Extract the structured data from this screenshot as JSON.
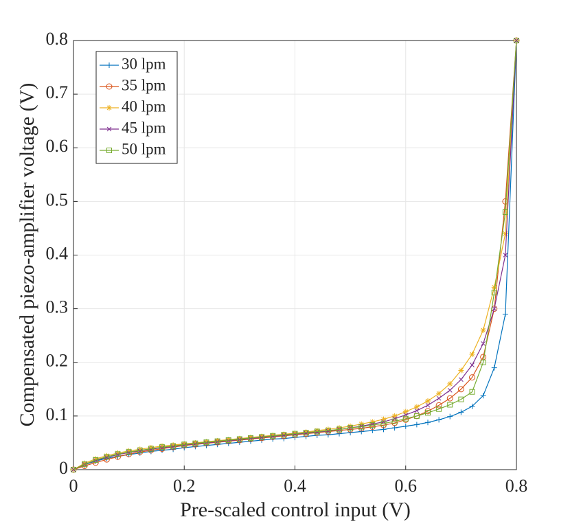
{
  "chart_data": {
    "type": "line",
    "xlabel": "Pre-scaled control input (V)",
    "ylabel": "Compensated piezo-amplifier voltage (V)",
    "x": [
      0,
      0.02,
      0.04,
      0.06,
      0.08,
      0.1,
      0.12,
      0.14,
      0.16,
      0.18,
      0.2,
      0.22,
      0.24,
      0.26,
      0.28,
      0.3,
      0.32,
      0.34,
      0.36,
      0.38,
      0.4,
      0.42,
      0.44,
      0.46,
      0.48,
      0.5,
      0.52,
      0.54,
      0.56,
      0.58,
      0.6,
      0.62,
      0.64,
      0.66,
      0.68,
      0.7,
      0.72,
      0.74,
      0.76,
      0.78,
      0.8
    ],
    "series": [
      {
        "name": "30 lpm",
        "color": "#0072bd",
        "marker": "+",
        "values": [
          0,
          0.009,
          0.016,
          0.021,
          0.025,
          0.028,
          0.031,
          0.034,
          0.036,
          0.038,
          0.041,
          0.043,
          0.045,
          0.047,
          0.049,
          0.051,
          0.053,
          0.055,
          0.057,
          0.058,
          0.06,
          0.062,
          0.064,
          0.065,
          0.067,
          0.069,
          0.071,
          0.073,
          0.075,
          0.078,
          0.081,
          0.084,
          0.088,
          0.093,
          0.099,
          0.107,
          0.118,
          0.138,
          0.19,
          0.29,
          0.8
        ]
      },
      {
        "name": "35 lpm",
        "color": "#d95319",
        "marker": "o",
        "values": [
          0,
          0.007,
          0.013,
          0.019,
          0.024,
          0.029,
          0.033,
          0.036,
          0.039,
          0.042,
          0.045,
          0.047,
          0.049,
          0.051,
          0.053,
          0.055,
          0.057,
          0.059,
          0.061,
          0.063,
          0.065,
          0.067,
          0.069,
          0.071,
          0.073,
          0.075,
          0.077,
          0.08,
          0.083,
          0.087,
          0.093,
          0.1,
          0.109,
          0.12,
          0.133,
          0.15,
          0.172,
          0.21,
          0.3,
          0.5,
          0.8
        ]
      },
      {
        "name": "40 lpm",
        "color": "#edb120",
        "marker": "*",
        "values": [
          0,
          0.012,
          0.02,
          0.026,
          0.031,
          0.035,
          0.038,
          0.041,
          0.044,
          0.046,
          0.048,
          0.05,
          0.052,
          0.054,
          0.056,
          0.058,
          0.06,
          0.062,
          0.064,
          0.066,
          0.068,
          0.07,
          0.073,
          0.075,
          0.078,
          0.081,
          0.085,
          0.089,
          0.094,
          0.1,
          0.108,
          0.117,
          0.128,
          0.142,
          0.16,
          0.185,
          0.215,
          0.26,
          0.34,
          0.44,
          0.8
        ]
      },
      {
        "name": "45 lpm",
        "color": "#7e2f8e",
        "marker": "x",
        "values": [
          0,
          0.01,
          0.017,
          0.023,
          0.028,
          0.032,
          0.035,
          0.038,
          0.041,
          0.043,
          0.046,
          0.048,
          0.05,
          0.052,
          0.054,
          0.056,
          0.058,
          0.06,
          0.062,
          0.064,
          0.066,
          0.068,
          0.07,
          0.072,
          0.075,
          0.078,
          0.081,
          0.085,
          0.089,
          0.095,
          0.102,
          0.11,
          0.12,
          0.133,
          0.148,
          0.168,
          0.195,
          0.235,
          0.3,
          0.4,
          0.8
        ]
      },
      {
        "name": "50 lpm",
        "color": "#77ac30",
        "marker": "s",
        "values": [
          0,
          0.01,
          0.018,
          0.024,
          0.029,
          0.033,
          0.036,
          0.039,
          0.042,
          0.044,
          0.047,
          0.049,
          0.051,
          0.053,
          0.055,
          0.057,
          0.059,
          0.061,
          0.063,
          0.065,
          0.067,
          0.069,
          0.071,
          0.073,
          0.075,
          0.078,
          0.08,
          0.083,
          0.086,
          0.09,
          0.095,
          0.1,
          0.106,
          0.113,
          0.121,
          0.131,
          0.145,
          0.2,
          0.33,
          0.48,
          0.8
        ]
      }
    ],
    "xlim": [
      0,
      0.8
    ],
    "xticks": [
      0,
      0.2,
      0.4,
      0.6,
      0.8
    ],
    "ylim": [
      0,
      0.8
    ],
    "yticks": [
      0,
      0.1,
      0.2,
      0.3,
      0.4,
      0.5,
      0.6,
      0.7,
      0.8
    ],
    "grid": true,
    "legend": "upper-left"
  }
}
